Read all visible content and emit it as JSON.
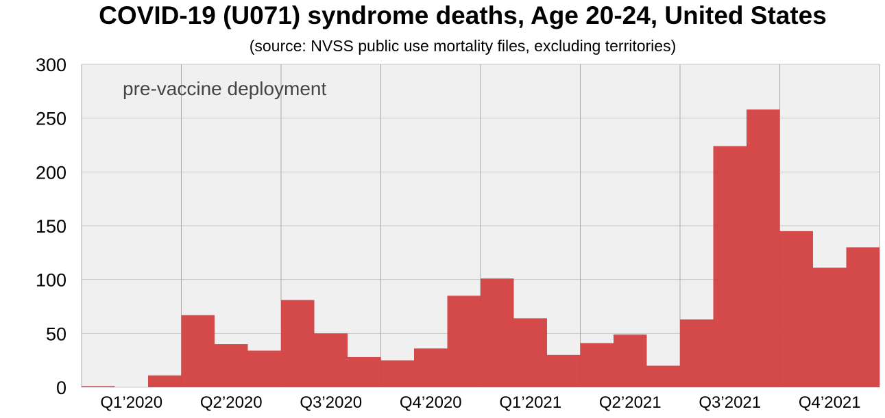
{
  "chart_data": {
    "type": "bar",
    "title": "COVID-19 (U071) syndrome deaths, Age 20-24, United States",
    "subtitle": "(source: NVSS public use mortality files, excluding territories)",
    "xlabel": "",
    "ylabel": "",
    "ylim": [
      0,
      300
    ],
    "yticks": [
      "0",
      "50",
      "100",
      "150",
      "200",
      "250",
      "300"
    ],
    "quarters": [
      "Q1’2020",
      "Q2’2020",
      "Q3’2020",
      "Q4’2020",
      "Q1’2021",
      "Q2’2021",
      "Q3’2021",
      "Q4’2021"
    ],
    "months": [
      "2020-01",
      "2020-02",
      "2020-03",
      "2020-04",
      "2020-05",
      "2020-06",
      "2020-07",
      "2020-08",
      "2020-09",
      "2020-10",
      "2020-11",
      "2020-12",
      "2021-01",
      "2021-02",
      "2021-03",
      "2021-04",
      "2021-05",
      "2021-06",
      "2021-07",
      "2021-08",
      "2021-09",
      "2021-10",
      "2021-11",
      "2021-12"
    ],
    "values": [
      1,
      0,
      11,
      67,
      40,
      34,
      81,
      50,
      28,
      25,
      36,
      85,
      101,
      64,
      30,
      41,
      49,
      20,
      63,
      224,
      258,
      145,
      111,
      130
    ],
    "shaded_region": {
      "label": "pre-vaccine deployment",
      "start_month": "2020-01",
      "end_month": "2021-12"
    },
    "grid": true,
    "colors": {
      "bar": "#d24040",
      "shade": "#f0f0f0",
      "grid": "#c8c8c8",
      "quarter_grid": "#a8a8a8"
    }
  }
}
